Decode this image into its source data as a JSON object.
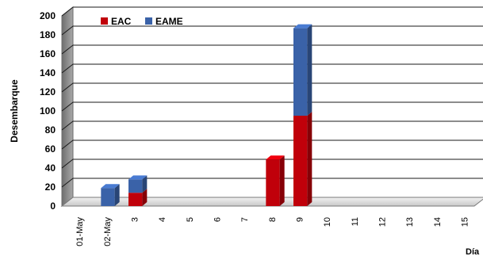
{
  "chart_data": {
    "type": "bar",
    "stacked": true,
    "three_d": true,
    "title": "",
    "xlabel": "Día",
    "ylabel": "Desembarque",
    "ylim": [
      0,
      200
    ],
    "y_ticks": [
      0,
      20,
      40,
      60,
      80,
      100,
      120,
      140,
      160,
      180,
      200
    ],
    "grid": true,
    "legend_position": "top-left",
    "categories": [
      "01-May",
      "02-May",
      "3",
      "4",
      "5",
      "6",
      "7",
      "8",
      "9",
      "10",
      "11",
      "12",
      "13",
      "14",
      "15"
    ],
    "series": [
      {
        "name": "EAC",
        "color": "#c0000a",
        "values": [
          0,
          0,
          14,
          0,
          0,
          0,
          0,
          49,
          95,
          0,
          0,
          0,
          0,
          0,
          0
        ]
      },
      {
        "name": "EAME",
        "color": "#3a62a8",
        "values": [
          0,
          19,
          14,
          0,
          0,
          0,
          0,
          0,
          92,
          0,
          0,
          0,
          0,
          0,
          0
        ]
      }
    ]
  }
}
